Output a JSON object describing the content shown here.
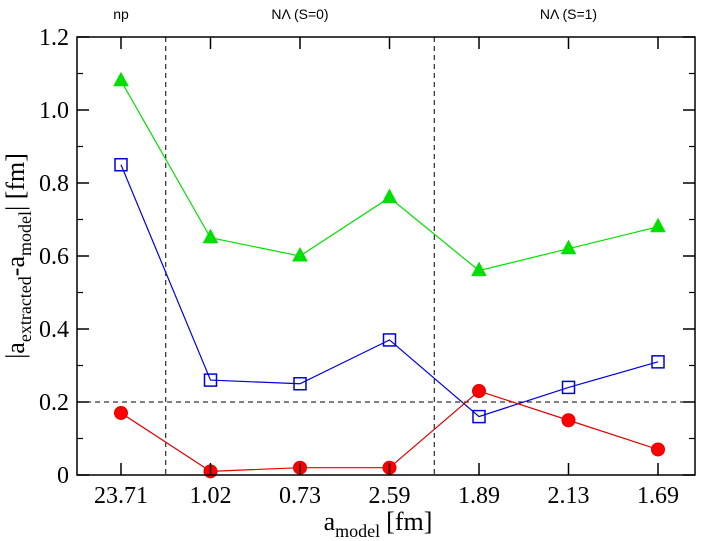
{
  "chart_data": {
    "type": "line",
    "title": "",
    "xlabel": "a",
    "xlabel_sub": "model",
    "xlabel_unit": "[fm]",
    "ylabel_prefix": "|a",
    "ylabel_sub1": "extracted",
    "ylabel_mid": "-a",
    "ylabel_sub2": "model",
    "ylabel_suffix": "| [fm]",
    "categories": [
      "23.71",
      "1.02",
      "0.73",
      "2.59",
      "1.89",
      "2.13",
      "1.69"
    ],
    "ylim": [
      0,
      1.2
    ],
    "yticks": [
      "0",
      "0.2",
      "0.4",
      "0.6",
      "0.8",
      "1.0",
      "1.2"
    ],
    "sections": [
      {
        "label": "np",
        "from": 0,
        "to": 0
      },
      {
        "label": "NΛ (S=0)",
        "from": 1,
        "to": 3
      },
      {
        "label": "NΛ (S=1)",
        "from": 4,
        "to": 6
      }
    ],
    "dividers_after_index": [
      0,
      3
    ],
    "reference_line": 0.2,
    "series": [
      {
        "name": "triangles",
        "marker": "filled-triangle",
        "color": "#00e000",
        "fill": "#00e000",
        "values": [
          1.08,
          0.65,
          0.6,
          0.76,
          0.56,
          0.62,
          0.68
        ]
      },
      {
        "name": "squares",
        "marker": "open-square",
        "color": "#0000e0",
        "fill": "none",
        "values": [
          0.85,
          0.26,
          0.25,
          0.37,
          0.16,
          0.24,
          0.31
        ]
      },
      {
        "name": "circles",
        "marker": "filled-circle",
        "color": "#e00000",
        "fill": "#ff0000",
        "values": [
          0.17,
          0.01,
          0.02,
          0.02,
          0.23,
          0.15,
          0.07
        ]
      }
    ]
  }
}
